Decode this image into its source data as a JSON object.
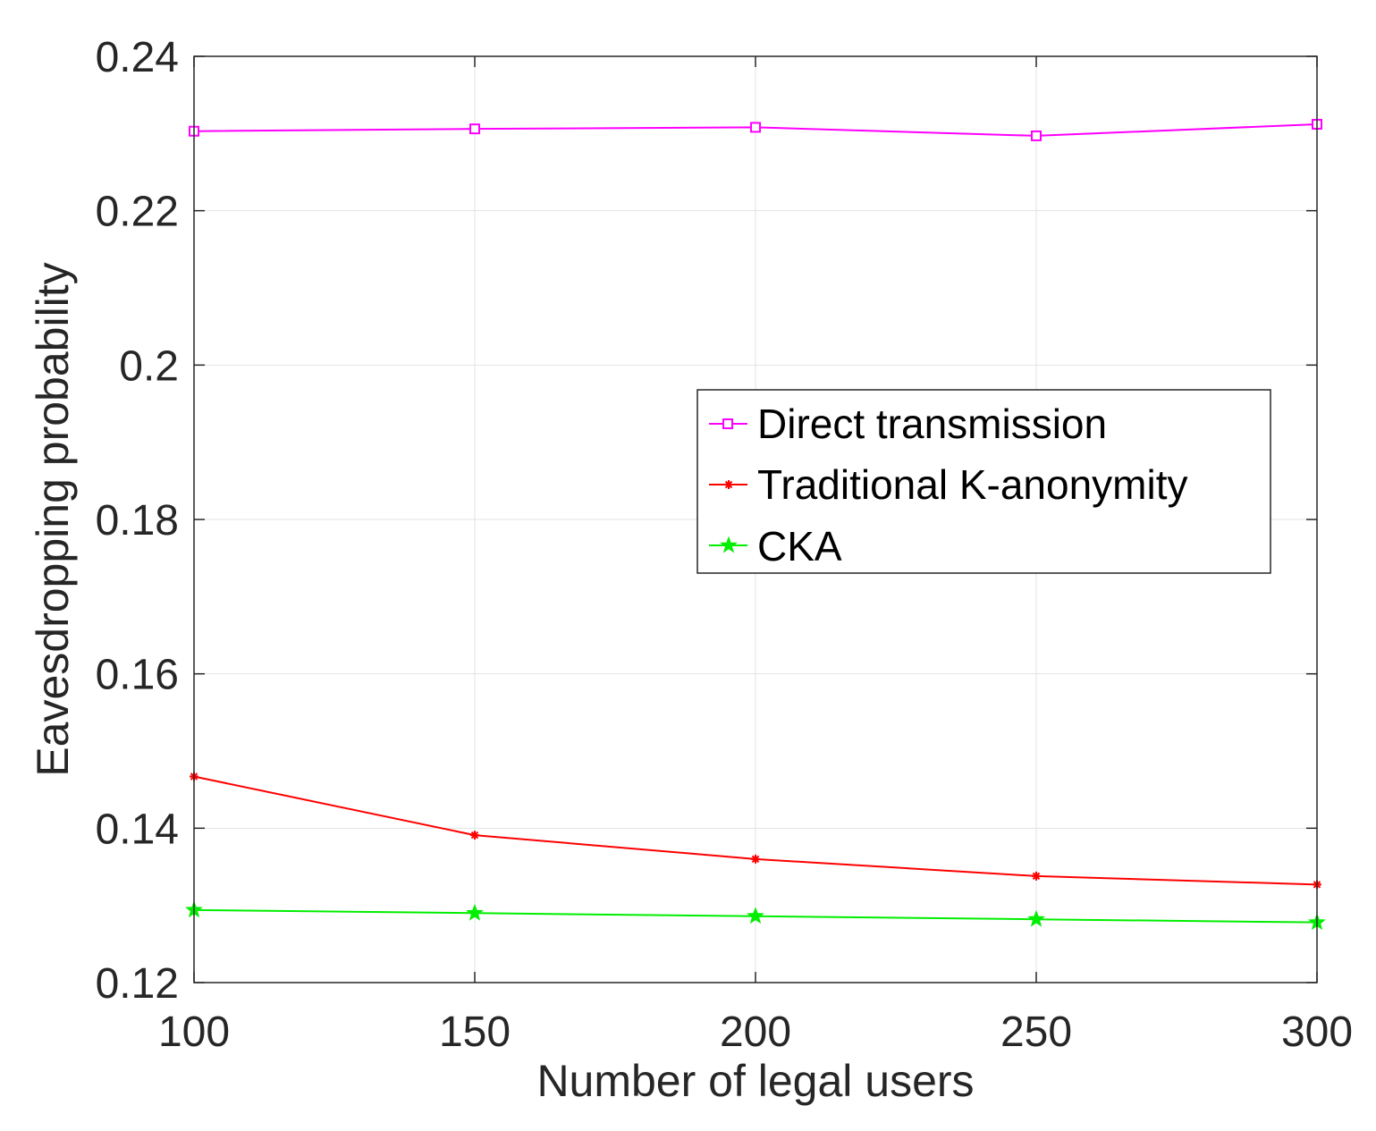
{
  "chart_data": {
    "type": "line",
    "title": "",
    "xlabel": "Number of legal users",
    "ylabel": "Eavesdropping probability",
    "x": [
      100,
      150,
      200,
      250,
      300
    ],
    "xlim": [
      100,
      300
    ],
    "ylim": [
      0.12,
      0.24
    ],
    "xticks": [
      100,
      150,
      200,
      250,
      300
    ],
    "xtick_labels": [
      "100",
      "150",
      "200",
      "250",
      "300"
    ],
    "yticks": [
      0.12,
      0.14,
      0.16,
      0.18,
      0.2,
      0.22,
      0.24
    ],
    "ytick_labels": [
      "0.12",
      "0.14",
      "0.16",
      "0.18",
      "0.2",
      "0.22",
      "0.24"
    ],
    "grid": true,
    "legend_position": "center-right",
    "series": [
      {
        "name": "Direct transmission",
        "color": "#ff00ff",
        "marker": "square",
        "values": [
          0.2303,
          0.2306,
          0.2308,
          0.2297,
          0.2312
        ]
      },
      {
        "name": "Traditional K-anonymity",
        "color": "#ff0000",
        "marker": "asterisk",
        "values": [
          0.1467,
          0.1391,
          0.136,
          0.1338,
          0.1327
        ]
      },
      {
        "name": "CKA",
        "color": "#00ee00",
        "marker": "star",
        "values": [
          0.1294,
          0.129,
          0.1286,
          0.1282,
          0.1278
        ]
      }
    ]
  }
}
